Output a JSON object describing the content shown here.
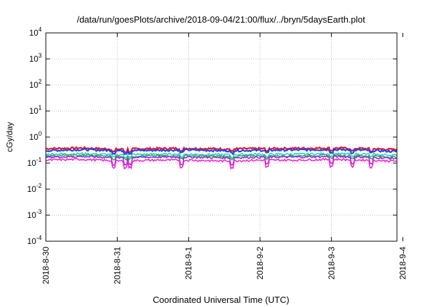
{
  "chart_data": {
    "type": "line",
    "title": "/data/run/goesPlots/archive/2018-09-04/21:00/flux/../bryn/5daysEarth.plot",
    "xlabel": "Coordinated Universal Time (UTC)",
    "ylabel": "cGy/day",
    "yscale": "log",
    "ylim": [
      0.0001,
      10000
    ],
    "xlim": [
      0,
      5.0
    ],
    "grid": true,
    "y_ticks": [
      {
        "value": 0.0001,
        "base": "10",
        "exp": "-4"
      },
      {
        "value": 0.001,
        "base": "10",
        "exp": "-3"
      },
      {
        "value": 0.01,
        "base": "10",
        "exp": "-2"
      },
      {
        "value": 0.1,
        "base": "10",
        "exp": "-1"
      },
      {
        "value": 1,
        "base": "10",
        "exp": "0"
      },
      {
        "value": 10,
        "base": "10",
        "exp": "1"
      },
      {
        "value": 100,
        "base": "10",
        "exp": "2"
      },
      {
        "value": 1000,
        "base": "10",
        "exp": "3"
      },
      {
        "value": 10000,
        "base": "10",
        "exp": "4"
      }
    ],
    "x_ticks": [
      {
        "value": 0,
        "label": "2018-8-30"
      },
      {
        "value": 1,
        "label": "2018-8-31"
      },
      {
        "value": 2,
        "label": "2018-9-1"
      },
      {
        "value": 3,
        "label": "2018-9-2"
      },
      {
        "value": 4,
        "label": "2018-9-3"
      },
      {
        "value": 5,
        "label": "2018-9-4"
      }
    ],
    "series": [
      {
        "color": "#e4162c",
        "values_x": [
          0,
          0.5,
          1.0,
          1.5,
          2.0,
          2.5,
          3.0,
          3.5,
          4.0,
          4.5,
          4.9
        ],
        "values_y": [
          0.36,
          0.38,
          0.34,
          0.36,
          0.37,
          0.35,
          0.36,
          0.37,
          0.38,
          0.36,
          0.33
        ]
      },
      {
        "color": "#2c3fe6",
        "values_x": [
          0,
          0.5,
          1.0,
          1.5,
          2.0,
          2.5,
          3.0,
          3.5,
          4.0,
          4.5,
          4.9
        ],
        "values_y": [
          0.3,
          0.33,
          0.3,
          0.31,
          0.32,
          0.3,
          0.31,
          0.32,
          0.33,
          0.31,
          0.28
        ]
      },
      {
        "color": "#20d4c8",
        "values_x": [
          0,
          0.5,
          1.0,
          1.5,
          2.0,
          2.5,
          3.0,
          3.5,
          4.0,
          4.5,
          4.9
        ],
        "values_y": [
          0.22,
          0.23,
          0.21,
          0.22,
          0.22,
          0.21,
          0.22,
          0.22,
          0.23,
          0.22,
          0.2
        ]
      },
      {
        "color": "#3aa64a",
        "values_x": [
          0,
          0.5,
          1.0,
          1.5,
          2.0,
          2.5,
          3.0,
          3.5,
          4.0,
          4.5,
          4.9
        ],
        "values_y": [
          0.19,
          0.2,
          0.18,
          0.19,
          0.19,
          0.18,
          0.19,
          0.19,
          0.2,
          0.19,
          0.17
        ]
      },
      {
        "color": "#8a2be2",
        "values_x": [
          0,
          0.5,
          1.0,
          1.5,
          2.0,
          2.5,
          3.0,
          3.5,
          4.0,
          4.5,
          4.9
        ],
        "values_y": [
          0.17,
          0.18,
          0.16,
          0.17,
          0.17,
          0.16,
          0.17,
          0.17,
          0.18,
          0.17,
          0.15
        ]
      },
      {
        "color": "#ff1fd0",
        "values_x": [
          0,
          0.5,
          1.0,
          1.5,
          2.0,
          2.5,
          3.0,
          3.5,
          4.0,
          4.5,
          4.9
        ],
        "values_y": [
          0.13,
          0.14,
          0.12,
          0.13,
          0.13,
          0.12,
          0.13,
          0.13,
          0.14,
          0.13,
          0.12
        ]
      }
    ]
  }
}
